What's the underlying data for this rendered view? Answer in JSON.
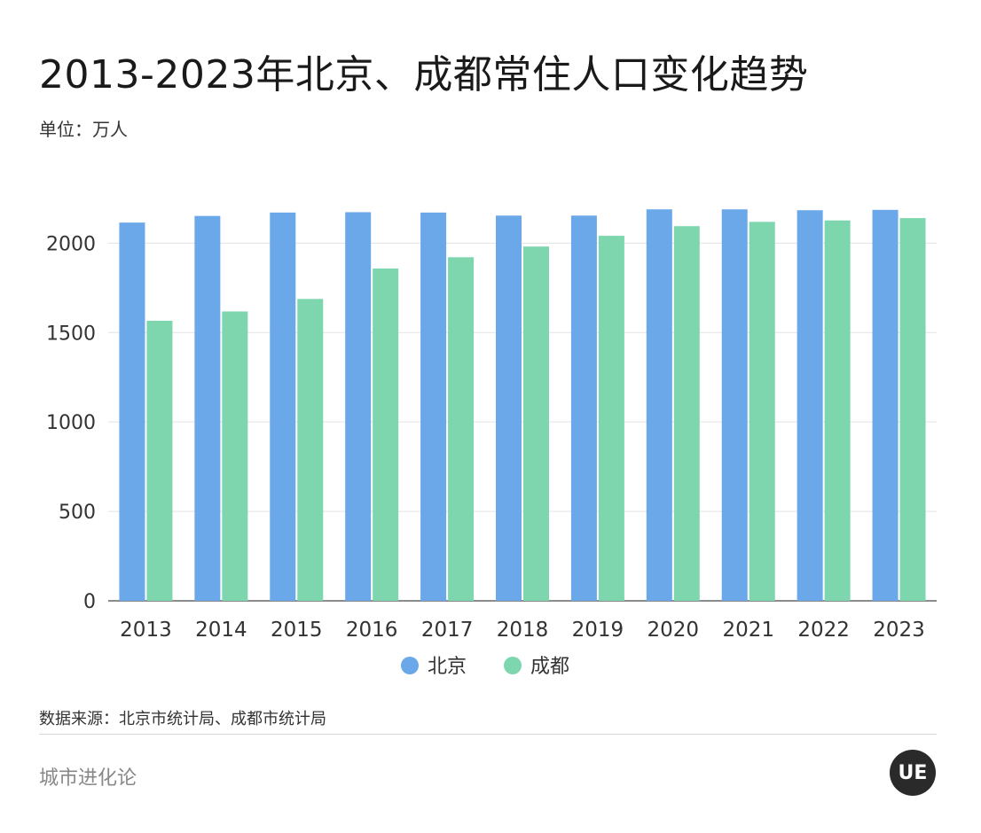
{
  "header": {
    "title": "2013-2023年北京、成都常住人口变化趋势",
    "unit": "单位：万人"
  },
  "chart_data": {
    "type": "bar",
    "categories": [
      "2013",
      "2014",
      "2015",
      "2016",
      "2017",
      "2018",
      "2019",
      "2020",
      "2021",
      "2022",
      "2023"
    ],
    "series": [
      {
        "name": "北京",
        "color": "#6aa8ea",
        "values": [
          2115,
          2152,
          2171,
          2173,
          2171,
          2154,
          2154,
          2189,
          2189,
          2184,
          2186
        ]
      },
      {
        "name": "成都",
        "color": "#7dd6ae",
        "values": [
          1566,
          1618,
          1688,
          1858,
          1921,
          1981,
          2041,
          2095,
          2119,
          2127,
          2140
        ]
      }
    ],
    "ylim": [
      0,
      2200
    ],
    "yticks": [
      0,
      500,
      1000,
      1500,
      2000
    ],
    "grid": true,
    "legend_position": "bottom-center",
    "xlabel": "",
    "ylabel": ""
  },
  "footer": {
    "source": "数据来源：北京市统计局、成都市统计局",
    "brand": "城市进化论",
    "logo_text": "UE"
  }
}
